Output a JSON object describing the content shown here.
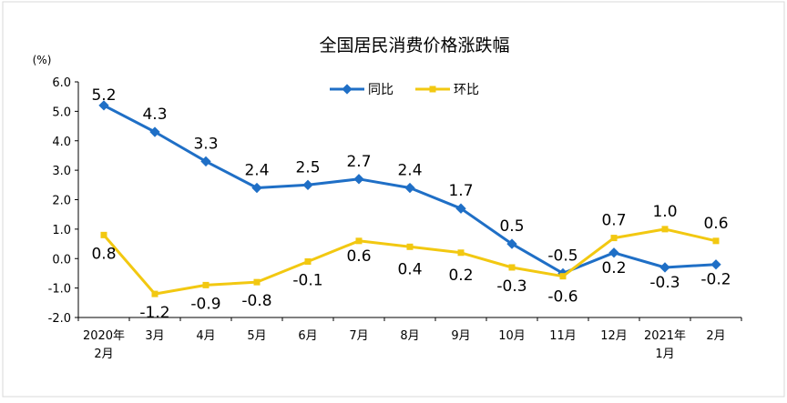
{
  "colors": {
    "series_1": "#1f6fc6",
    "series_2": "#f2c811",
    "axis": "#000000",
    "frame": "#d9d9d9"
  },
  "chart_data": {
    "type": "line",
    "title": "全国居民消费价格涨跌幅",
    "unit": "(%)",
    "xlabel": "",
    "ylabel": "",
    "ylim": [
      -2.0,
      6.0
    ],
    "yticks": [
      "6.0",
      "5.0",
      "4.0",
      "3.0",
      "2.0",
      "1.0",
      "0.0",
      "-1.0",
      "-2.0"
    ],
    "categories": [
      [
        "2020年",
        "2月"
      ],
      [
        "3月"
      ],
      [
        "4月"
      ],
      [
        "5月"
      ],
      [
        "6月"
      ],
      [
        "7月"
      ],
      [
        "8月"
      ],
      [
        "9月"
      ],
      [
        "10月"
      ],
      [
        "11月"
      ],
      [
        "12月"
      ],
      [
        "2021年",
        "1月"
      ],
      [
        "2月"
      ]
    ],
    "legend_position": "top-center",
    "grid": false,
    "series": [
      {
        "name": "同比",
        "values": [
          5.2,
          4.3,
          3.3,
          2.4,
          2.5,
          2.7,
          2.4,
          1.7,
          0.5,
          -0.5,
          0.2,
          -0.3,
          -0.2
        ],
        "labels": [
          "5.2",
          "4.3",
          "3.3",
          "2.4",
          "2.5",
          "2.7",
          "2.4",
          "1.7",
          "0.5",
          "-0.5",
          "0.2",
          "-0.3",
          "-0.2"
        ]
      },
      {
        "name": "环比",
        "values": [
          0.8,
          -1.2,
          -0.9,
          -0.8,
          -0.1,
          0.6,
          0.4,
          0.2,
          -0.3,
          -0.6,
          0.7,
          1.0,
          0.6
        ],
        "labels": [
          "0.8",
          "-1.2",
          "-0.9",
          "-0.8",
          "-0.1",
          "0.6",
          "0.4",
          "0.2",
          "-0.3",
          "-0.6",
          "0.7",
          "1.0",
          "0.6"
        ]
      }
    ]
  }
}
